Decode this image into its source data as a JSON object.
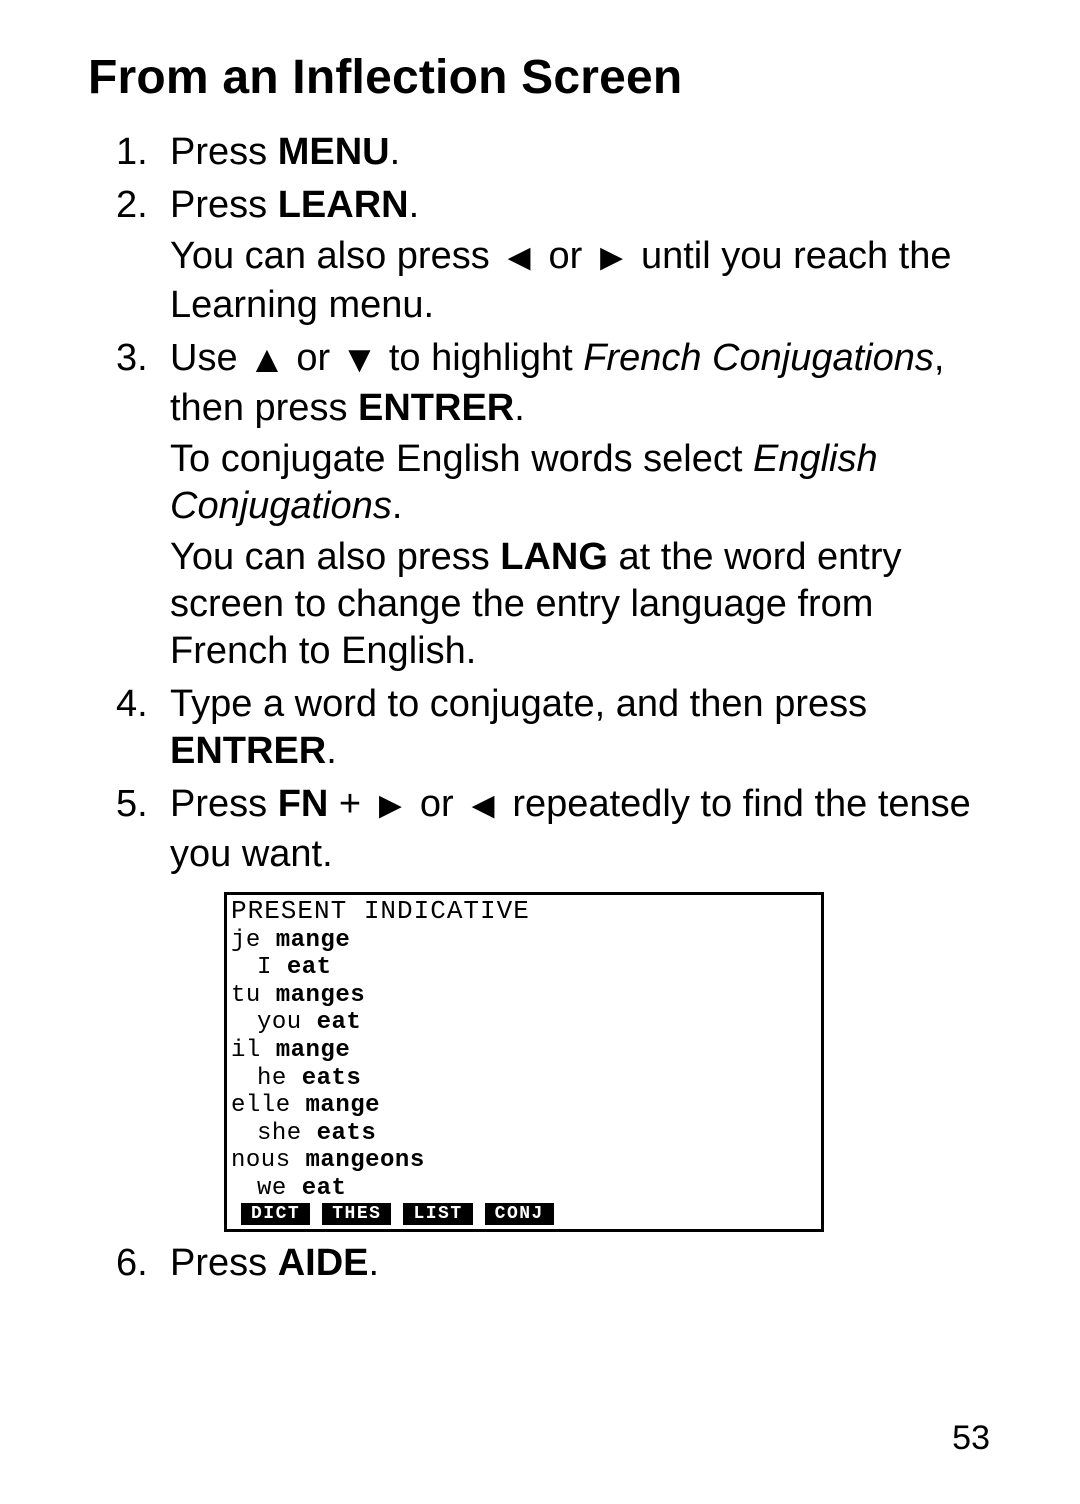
{
  "title": "From an Inflection Screen",
  "page_number": "53",
  "icons": {
    "left": "◄",
    "right": "►",
    "up": "▲",
    "down": "▼"
  },
  "steps": {
    "s1": {
      "num": "1.",
      "text_a": "Press ",
      "key": "MENU",
      "text_b": "."
    },
    "s2": {
      "num": "2.",
      "line1_a": "Press ",
      "line1_key": "LEARN",
      "line1_b": ".",
      "line2_a": "You can also press ",
      "line2_b": " or ",
      "line2_c": " until you reach the Learning menu."
    },
    "s3": {
      "num": "3.",
      "line1_a": "Use ",
      "line1_b": " or ",
      "line1_c": " to highlight ",
      "line1_em": "French Conjugations",
      "line1_d": ", then press ",
      "line1_key": "ENTRER",
      "line1_e": ".",
      "line2_a": "To conjugate English words select ",
      "line2_em": "English Conjugations",
      "line2_b": ".",
      "line3_a": "You can also press ",
      "line3_key": "LANG",
      "line3_b": " at the word entry screen to change the entry language from French to English."
    },
    "s4": {
      "num": "4.",
      "text_a": "Type a word to conjugate, and then press ",
      "key": "ENTRER",
      "text_b": "."
    },
    "s5": {
      "num": "5.",
      "text_a": "Press ",
      "key": "FN",
      "text_b": " + ",
      "text_c": " or ",
      "text_d": " repeatedly to find the tense you want."
    },
    "s6": {
      "num": "6.",
      "text_a": "Press ",
      "key": "AIDE",
      "text_b": "."
    }
  },
  "lcd": {
    "header": "PRESENT INDICATIVE",
    "rows": [
      {
        "fr_pron": "je ",
        "fr_verb": "mange",
        "en_pron": "I ",
        "en_verb": "eat"
      },
      {
        "fr_pron": "tu ",
        "fr_verb": "manges",
        "en_pron": "you ",
        "en_verb": "eat"
      },
      {
        "fr_pron": "il ",
        "fr_verb": "mange",
        "en_pron": "he ",
        "en_verb": "eats"
      },
      {
        "fr_pron": "elle ",
        "fr_verb": "mange",
        "en_pron": "she ",
        "en_verb": "eats"
      },
      {
        "fr_pron": "nous ",
        "fr_verb": "mangeons",
        "en_pron": "we ",
        "en_verb": "eat"
      }
    ],
    "tabs": [
      "DICT",
      "THES",
      "LIST",
      "CONJ"
    ]
  }
}
